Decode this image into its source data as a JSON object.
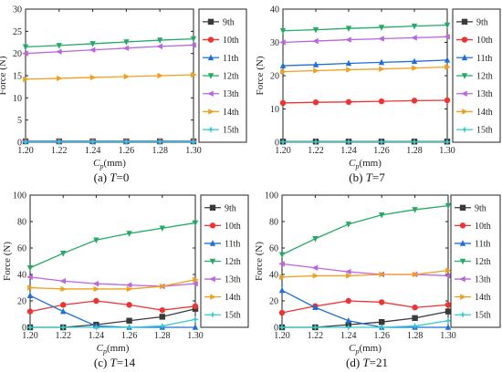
{
  "chart_data": [
    {
      "type": "line",
      "caption": "(a) T=0",
      "xlabel": "Cp(mm)",
      "ylabel": "Force (N)",
      "x": [
        1.2,
        1.22,
        1.24,
        1.26,
        1.28,
        1.3
      ],
      "xticks": [
        "1.20",
        "1.22",
        "1.24",
        "1.26",
        "1.28",
        "1.30"
      ],
      "xlim": [
        1.2,
        1.3
      ],
      "ylim": [
        0,
        30
      ],
      "yticks": [
        0,
        5,
        10,
        15,
        20,
        25,
        30
      ],
      "grid": false,
      "legend": "right",
      "series": [
        {
          "name": "9th",
          "values": [
            0.2,
            0.2,
            0.2,
            0.2,
            0.2,
            0.2
          ]
        },
        {
          "name": "10th",
          "values": [
            0.2,
            0.2,
            0.2,
            0.2,
            0.2,
            0.2
          ]
        },
        {
          "name": "11th",
          "values": [
            0.2,
            0.2,
            0.2,
            0.2,
            0.2,
            0.2
          ]
        },
        {
          "name": "12th",
          "values": [
            21.5,
            21.8,
            22.2,
            22.6,
            23.0,
            23.3
          ]
        },
        {
          "name": "13th",
          "values": [
            20.0,
            20.4,
            20.8,
            21.2,
            21.6,
            21.9
          ]
        },
        {
          "name": "14th",
          "values": [
            14.2,
            14.4,
            14.6,
            14.8,
            15.0,
            15.2
          ]
        },
        {
          "name": "15th",
          "values": [
            0.1,
            0.1,
            0.1,
            0.1,
            0.1,
            0.1
          ]
        }
      ]
    },
    {
      "type": "line",
      "caption": "(b) T=7",
      "xlabel": "Cp(mm)",
      "ylabel": "Force (N)",
      "x": [
        1.2,
        1.22,
        1.24,
        1.26,
        1.28,
        1.3
      ],
      "xticks": [
        "1.20",
        "1.22",
        "1.24",
        "1.26",
        "1.28",
        "1.30"
      ],
      "xlim": [
        1.2,
        1.3
      ],
      "ylim": [
        0,
        40
      ],
      "yticks": [
        0,
        10,
        20,
        30,
        40
      ],
      "grid": false,
      "legend": "right",
      "series": [
        {
          "name": "9th",
          "values": [
            0.2,
            0.2,
            0.2,
            0.2,
            0.2,
            0.2
          ]
        },
        {
          "name": "10th",
          "values": [
            11.8,
            12.0,
            12.1,
            12.3,
            12.5,
            12.6
          ]
        },
        {
          "name": "11th",
          "values": [
            23.0,
            23.3,
            23.7,
            24.0,
            24.3,
            24.7
          ]
        },
        {
          "name": "12th",
          "values": [
            33.5,
            33.8,
            34.2,
            34.5,
            34.9,
            35.2
          ]
        },
        {
          "name": "13th",
          "values": [
            30.0,
            30.4,
            30.8,
            31.1,
            31.4,
            31.7
          ]
        },
        {
          "name": "14th",
          "values": [
            21.2,
            21.5,
            21.8,
            22.0,
            22.3,
            22.6
          ]
        },
        {
          "name": "15th",
          "values": [
            0.1,
            0.1,
            0.1,
            0.1,
            0.1,
            0.1
          ]
        }
      ]
    },
    {
      "type": "line",
      "caption": "(c) T=14",
      "xlabel": "Cp(mm)",
      "ylabel": "Force (N)",
      "x": [
        1.2,
        1.22,
        1.24,
        1.26,
        1.28,
        1.3
      ],
      "xticks": [
        "1.20",
        "1.22",
        "1.24",
        "1.26",
        "1.28",
        "1.30"
      ],
      "xlim": [
        1.2,
        1.3
      ],
      "ylim": [
        0,
        100
      ],
      "yticks": [
        0,
        20,
        40,
        60,
        80,
        100
      ],
      "grid": false,
      "legend": "right",
      "series": [
        {
          "name": "9th",
          "values": [
            0,
            0,
            2,
            5,
            8,
            14
          ]
        },
        {
          "name": "10th",
          "values": [
            12,
            17,
            20,
            17,
            13,
            16
          ]
        },
        {
          "name": "11th",
          "values": [
            24,
            12,
            1,
            0,
            0,
            0
          ]
        },
        {
          "name": "12th",
          "values": [
            45,
            56,
            66,
            71,
            75,
            79
          ]
        },
        {
          "name": "13th",
          "values": [
            38,
            35,
            33,
            32,
            31,
            33
          ]
        },
        {
          "name": "14th",
          "values": [
            30,
            29,
            29,
            29,
            31,
            36
          ]
        },
        {
          "name": "15th",
          "values": [
            0,
            0,
            0,
            0,
            1,
            6
          ]
        }
      ]
    },
    {
      "type": "line",
      "caption": "(d) T=21",
      "xlabel": "Cp(mm)",
      "ylabel": "Force (N)",
      "x": [
        1.2,
        1.22,
        1.24,
        1.26,
        1.28,
        1.3
      ],
      "xticks": [
        "1.20",
        "1.22",
        "1.24",
        "1.26",
        "1.28",
        "1.30"
      ],
      "xlim": [
        1.2,
        1.3
      ],
      "ylim": [
        0,
        100
      ],
      "yticks": [
        0,
        20,
        40,
        60,
        80,
        100
      ],
      "grid": false,
      "legend": "right",
      "series": [
        {
          "name": "9th",
          "values": [
            0,
            0,
            2,
            4,
            7,
            12
          ]
        },
        {
          "name": "10th",
          "values": [
            11,
            16,
            20,
            19,
            15,
            17
          ]
        },
        {
          "name": "11th",
          "values": [
            28,
            15,
            5,
            0,
            0,
            0
          ]
        },
        {
          "name": "12th",
          "values": [
            55,
            67,
            78,
            85,
            89,
            92
          ]
        },
        {
          "name": "13th",
          "values": [
            48,
            45,
            42,
            40,
            40,
            39
          ]
        },
        {
          "name": "14th",
          "values": [
            38,
            39,
            39,
            40,
            40,
            43
          ]
        },
        {
          "name": "15th",
          "values": [
            0,
            0,
            0,
            0,
            1,
            5
          ]
        }
      ]
    }
  ],
  "series_colors": [
    "#3a3a3a",
    "#ee3333",
    "#1f6fd8",
    "#22aa66",
    "#bb66dd",
    "#f0a020",
    "#33cccc"
  ],
  "series_markers": [
    "square",
    "circle",
    "triangle-up",
    "triangle-down",
    "triangle-left",
    "triangle-right",
    "star"
  ]
}
